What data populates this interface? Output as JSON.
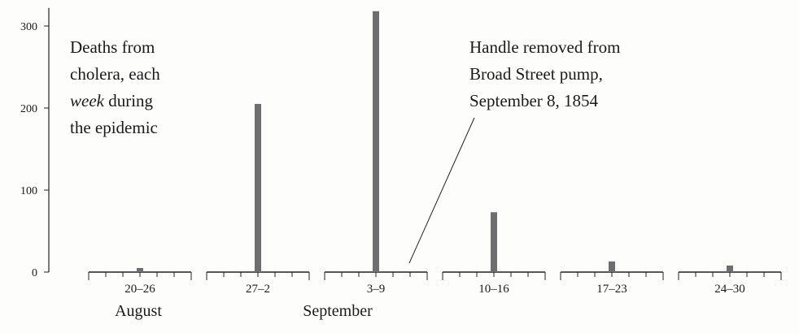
{
  "chart_data": {
    "type": "bar",
    "categories": [
      "20–26",
      "27–2",
      "3–9",
      "10–16",
      "17–23",
      "24–30"
    ],
    "values": [
      5,
      205,
      318,
      73,
      13,
      8
    ],
    "ylim": [
      0,
      320
    ],
    "yticks": [
      "0",
      "100",
      "200",
      "300"
    ],
    "month_labels": [
      "August",
      "September"
    ],
    "annotation_main": [
      "Deaths from",
      "cholera, each",
      "week",
      " during",
      "the epidemic"
    ],
    "annotation_pump": [
      "Handle removed from",
      "Broad Street pump,",
      "September 8, 1854"
    ],
    "colors": {
      "bar": "#6e6e6e",
      "axis": "#222222",
      "text": "#1a1a1a"
    }
  }
}
